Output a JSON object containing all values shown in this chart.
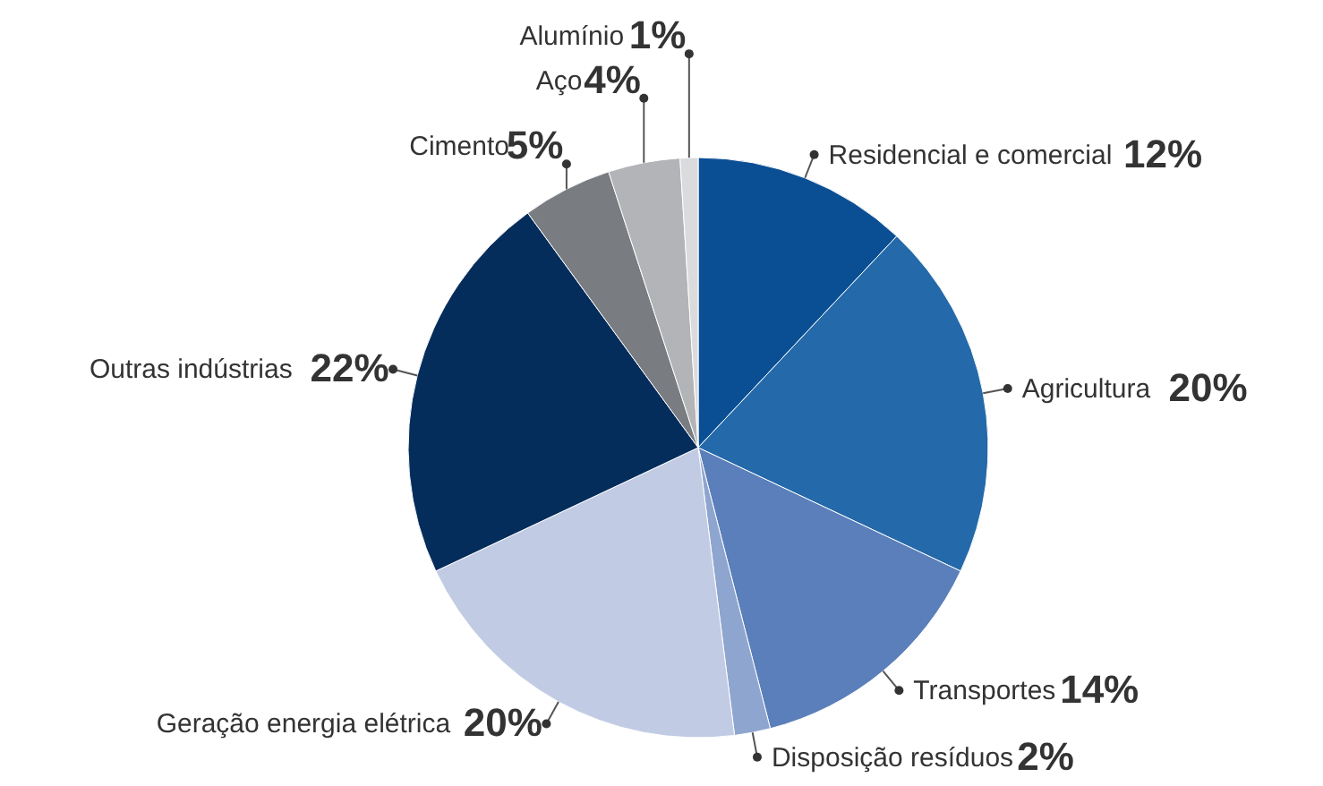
{
  "chart_data": {
    "type": "pie",
    "categories": [
      "Residencial e comercial",
      "Agricultura",
      "Transportes",
      "Disposição resíduos",
      "Geração energia elétrica",
      "Outras indústrias",
      "Cimento",
      "Aço",
      "Alumínio"
    ],
    "values": [
      12,
      20,
      14,
      2,
      20,
      22,
      5,
      4,
      1
    ],
    "value_labels": [
      "12%",
      "20%",
      "14%",
      "2%",
      "20%",
      "22%",
      "5%",
      "4%",
      "1%"
    ],
    "colors": [
      "#0a4f94",
      "#2469a9",
      "#5a7fba",
      "#8ea5cf",
      "#c1cbe4",
      "#042d5c",
      "#797c81",
      "#b2b4b7",
      "#dadbdd"
    ]
  }
}
